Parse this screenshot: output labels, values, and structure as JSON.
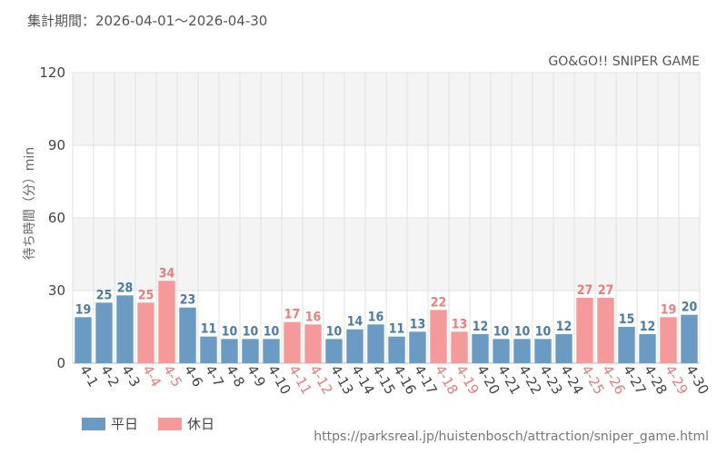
{
  "header": {
    "period": "集計期間：2026-04-01～2026-04-30",
    "attraction": "GO&GO!! SNIPER GAME"
  },
  "legend": {
    "weekday": "平日",
    "holiday": "休日"
  },
  "source": "https://parksreal.jp/huistenbosch/attraction/sniper_game.html",
  "colors": {
    "weekday": "#6b9bc3",
    "holiday": "#f59a9a",
    "weekday_label": "#4a7aa6",
    "holiday_label": "#f07b7b",
    "band": "#f4f4f4",
    "grid": "#e2e2e2"
  },
  "chart_data": {
    "type": "bar",
    "ylabel": "待ち時間（分）min",
    "ylim": [
      0,
      120
    ],
    "yticks": [
      0,
      30,
      60,
      90,
      120
    ],
    "categories": [
      "4-1",
      "4-2",
      "4-3",
      "4-4",
      "4-5",
      "4-6",
      "4-7",
      "4-8",
      "4-9",
      "4-10",
      "4-11",
      "4-12",
      "4-13",
      "4-14",
      "4-15",
      "4-16",
      "4-17",
      "4-18",
      "4-19",
      "4-20",
      "4-21",
      "4-22",
      "4-23",
      "4-24",
      "4-25",
      "4-26",
      "4-27",
      "4-28",
      "4-29",
      "4-30"
    ],
    "values": [
      19,
      25,
      28,
      25,
      34,
      23,
      11,
      10,
      10,
      10,
      17,
      16,
      10,
      14,
      16,
      11,
      13,
      22,
      13,
      12,
      10,
      10,
      10,
      12,
      27,
      27,
      15,
      12,
      19,
      20
    ],
    "day_type": [
      "平日",
      "平日",
      "平日",
      "休日",
      "休日",
      "平日",
      "平日",
      "平日",
      "平日",
      "平日",
      "休日",
      "休日",
      "平日",
      "平日",
      "平日",
      "平日",
      "平日",
      "休日",
      "休日",
      "平日",
      "平日",
      "平日",
      "平日",
      "平日",
      "休日",
      "休日",
      "平日",
      "平日",
      "休日",
      "平日"
    ],
    "grid": true,
    "legend_position": "bottom-left"
  }
}
